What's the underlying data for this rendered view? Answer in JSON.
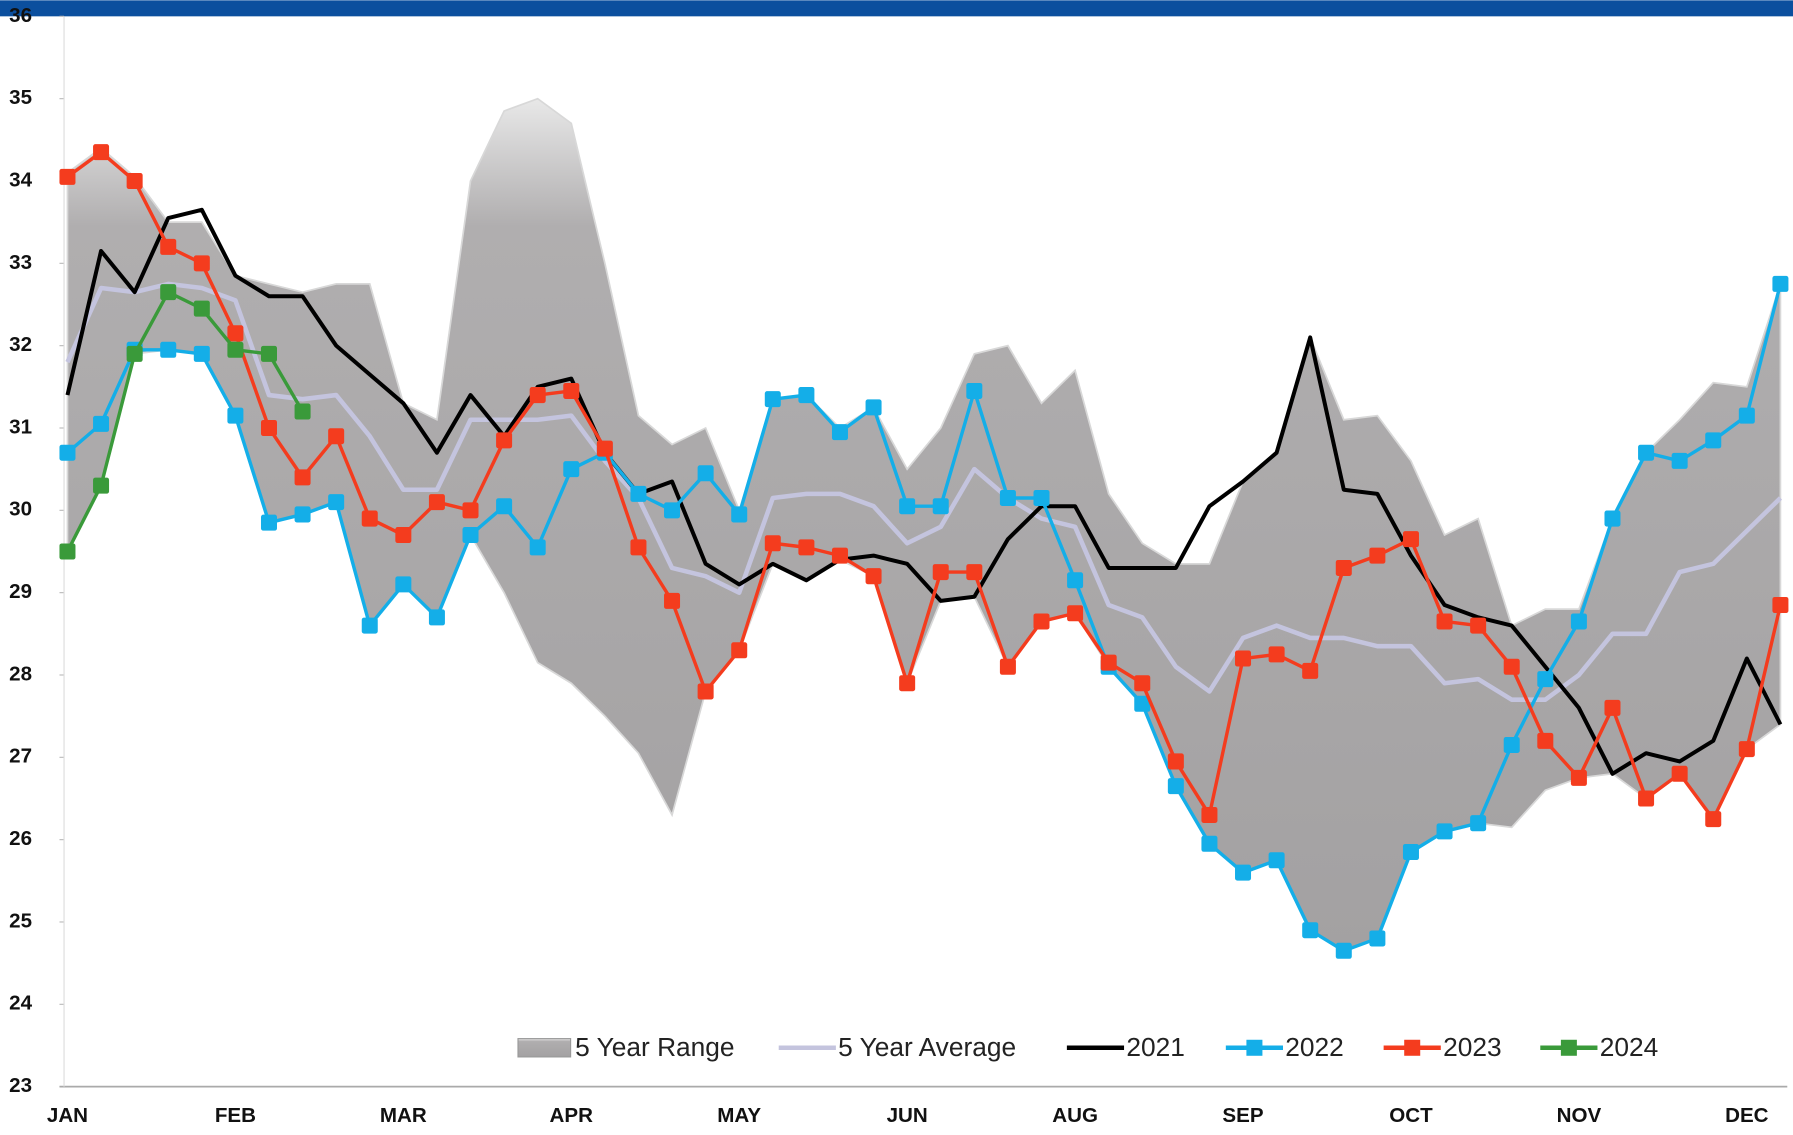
{
  "chart_data": {
    "type": "line",
    "categories": [
      "JAN",
      null,
      null,
      null,
      null,
      "FEB",
      null,
      null,
      null,
      null,
      "MAR",
      null,
      null,
      null,
      null,
      "APR",
      null,
      null,
      null,
      null,
      "MAY",
      null,
      null,
      null,
      null,
      "JUN",
      null,
      null,
      null,
      null,
      "AUG",
      null,
      null,
      null,
      null,
      "SEP",
      null,
      null,
      null,
      null,
      "OCT",
      null,
      null,
      null,
      null,
      "NOV",
      null,
      null,
      null,
      null,
      "DEC",
      null
    ],
    "ylim": [
      23,
      36
    ],
    "yticks": [
      23,
      24,
      25,
      26,
      27,
      28,
      29,
      30,
      31,
      32,
      33,
      34,
      35,
      36
    ],
    "grid": false,
    "legend": "bottom",
    "range": {
      "name": "5 Year Range",
      "color": "#a8a6a7",
      "upper": [
        34.1,
        34.4,
        34.05,
        33.5,
        33.5,
        32.85,
        32.75,
        32.65,
        32.75,
        32.75,
        31.3,
        31.1,
        34.0,
        34.85,
        35.0,
        34.7,
        33.0,
        31.15,
        30.8,
        31.0,
        30.0,
        31.35,
        31.4,
        31.0,
        31.25,
        30.5,
        31.0,
        31.9,
        32.0,
        31.3,
        31.7,
        30.2,
        29.6,
        29.35,
        29.35,
        30.35,
        30.7,
        32.1,
        31.1,
        31.15,
        30.6,
        29.7,
        29.9,
        28.6,
        28.8,
        28.8,
        29.9,
        30.7,
        31.1,
        31.55,
        31.5,
        32.75
      ],
      "lower": [
        29.5,
        30.3,
        31.9,
        31.95,
        31.9,
        31.15,
        29.85,
        29.95,
        30.1,
        28.6,
        29.1,
        28.7,
        29.7,
        29.0,
        28.15,
        27.9,
        27.5,
        27.05,
        26.3,
        27.8,
        28.3,
        29.35,
        29.15,
        29.4,
        29.2,
        27.9,
        28.9,
        28.95,
        28.1,
        28.65,
        28.75,
        28.1,
        27.65,
        26.65,
        25.95,
        25.6,
        25.75,
        24.9,
        24.65,
        24.8,
        25.85,
        26.1,
        26.2,
        26.15,
        26.6,
        26.75,
        26.8,
        26.5,
        26.8,
        26.25,
        27.1,
        27.4
      ]
    },
    "series": [
      {
        "name": "5 Year Average",
        "color": "#c4c4de",
        "marker": false,
        "values": [
          31.8,
          32.7,
          32.65,
          32.75,
          32.7,
          32.55,
          31.4,
          31.35,
          31.4,
          30.9,
          30.25,
          30.25,
          31.1,
          31.1,
          31.1,
          31.15,
          30.6,
          30.15,
          29.3,
          29.2,
          29.0,
          30.15,
          30.2,
          30.2,
          30.05,
          29.6,
          29.8,
          30.5,
          30.15,
          29.9,
          29.8,
          28.85,
          28.7,
          28.1,
          27.8,
          28.45,
          28.6,
          28.45,
          28.45,
          28.35,
          28.35,
          27.9,
          27.95,
          27.7,
          27.7,
          28.0,
          28.5,
          28.5,
          29.25,
          29.35,
          29.75,
          30.15
        ]
      },
      {
        "name": "2021",
        "color": "#000000",
        "marker": false,
        "values": [
          31.4,
          33.15,
          32.65,
          33.55,
          33.65,
          32.85,
          32.6,
          32.6,
          32.0,
          31.65,
          31.3,
          30.7,
          31.4,
          30.9,
          31.5,
          31.6,
          30.7,
          30.2,
          30.35,
          29.35,
          29.1,
          29.35,
          29.15,
          29.4,
          29.45,
          29.35,
          28.9,
          28.95,
          29.65,
          30.05,
          30.05,
          29.3,
          29.3,
          29.3,
          30.05,
          30.35,
          30.7,
          32.1,
          30.25,
          30.2,
          29.45,
          28.85,
          28.7,
          28.6,
          28.1,
          27.6,
          26.8,
          27.05,
          26.95,
          27.2,
          28.2,
          27.4
        ]
      },
      {
        "name": "2022",
        "color": "#14aee8",
        "marker": true,
        "values": [
          30.7,
          31.05,
          31.95,
          31.95,
          31.9,
          31.15,
          29.85,
          29.95,
          30.1,
          28.6,
          29.1,
          28.7,
          29.7,
          30.05,
          29.55,
          30.5,
          30.7,
          30.2,
          30.0,
          30.45,
          29.95,
          31.35,
          31.4,
          30.95,
          31.25,
          30.05,
          30.05,
          31.45,
          30.15,
          30.15,
          29.15,
          28.1,
          27.65,
          26.65,
          25.95,
          25.6,
          25.75,
          24.9,
          24.65,
          24.8,
          25.85,
          26.1,
          26.2,
          27.15,
          27.95,
          28.65,
          29.9,
          30.7,
          30.6,
          30.85,
          31.15,
          32.75
        ]
      },
      {
        "name": "2023",
        "color": "#f43c1e",
        "marker": true,
        "values": [
          34.05,
          34.35,
          34.0,
          33.2,
          33.0,
          32.15,
          31.0,
          30.4,
          30.9,
          29.9,
          29.7,
          30.1,
          30.0,
          30.85,
          31.4,
          31.45,
          30.75,
          29.55,
          28.9,
          27.8,
          28.3,
          29.6,
          29.55,
          29.45,
          29.2,
          27.9,
          29.25,
          29.25,
          28.1,
          28.65,
          28.75,
          28.15,
          27.9,
          26.95,
          26.3,
          28.2,
          28.25,
          28.05,
          29.3,
          29.45,
          29.65,
          28.65,
          28.6,
          28.1,
          27.2,
          26.75,
          27.6,
          26.5,
          26.8,
          26.25,
          27.1,
          28.85
        ]
      },
      {
        "name": "2024",
        "color": "#3a9a3a",
        "marker": true,
        "values": [
          29.5,
          30.3,
          31.9,
          32.65,
          32.45,
          31.95,
          31.9,
          31.2,
          null,
          null,
          null,
          null,
          null,
          null,
          null,
          null,
          null,
          null,
          null,
          null,
          null,
          null,
          null,
          null,
          null,
          null,
          null,
          null,
          null,
          null,
          null,
          null,
          null,
          null,
          null,
          null,
          null,
          null,
          null,
          null,
          null,
          null,
          null,
          null,
          null,
          null,
          null,
          null,
          null,
          null,
          null,
          null
        ]
      }
    ]
  }
}
